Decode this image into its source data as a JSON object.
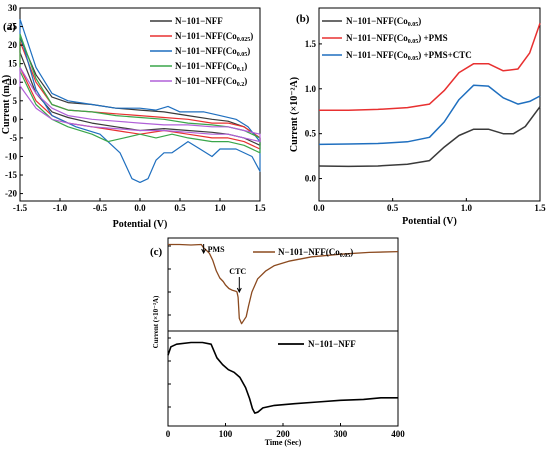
{
  "chart_data": [
    {
      "panel": "(a)",
      "type": "line",
      "xlabel": "Potential (V)",
      "ylabel": "Current (mA)",
      "xlim": [
        -1.5,
        1.5
      ],
      "ylim": [
        -22,
        30
      ],
      "xticks": [
        "-1.5",
        "-1.0",
        "-0.5",
        "0.0",
        "0.5",
        "1.0",
        "1.5"
      ],
      "yticks": [
        "30",
        "25",
        "20",
        "15",
        "10",
        "5",
        "0",
        "-5",
        "-10",
        "-15",
        "-20"
      ],
      "legend_position": "top-right",
      "series": [
        {
          "name": "N−101−NFF",
          "color": "#3a3a3a",
          "sub": "",
          "upper": [
            [
              -1.5,
              22
            ],
            [
              -1.3,
              12
            ],
            [
              -1.1,
              6
            ],
            [
              -0.9,
              4.5
            ],
            [
              -0.6,
              4
            ],
            [
              -0.3,
              3
            ],
            [
              0,
              2.5
            ],
            [
              0.3,
              2
            ],
            [
              0.6,
              1
            ],
            [
              0.9,
              0
            ],
            [
              1.1,
              -0.5
            ],
            [
              1.3,
              -2
            ],
            [
              1.5,
              -5
            ]
          ],
          "lower": [
            [
              1.5,
              -7
            ],
            [
              1.3,
              -5
            ],
            [
              1.1,
              -4
            ],
            [
              0.9,
              -3.5
            ],
            [
              0.6,
              -3
            ],
            [
              0.3,
              -2.5
            ],
            [
              0,
              -3
            ],
            [
              -0.3,
              -2
            ],
            [
              -0.6,
              -1
            ],
            [
              -0.9,
              0.5
            ],
            [
              -1.1,
              2
            ],
            [
              -1.3,
              7
            ],
            [
              -1.5,
              18
            ]
          ]
        },
        {
          "name": "N−101−NFF(Co",
          "color": "#e83030",
          "sub": "0.025",
          "upper": [
            [
              -1.5,
              21
            ],
            [
              -1.3,
              10
            ],
            [
              -1.1,
              4
            ],
            [
              -0.9,
              2.5
            ],
            [
              -0.6,
              2
            ],
            [
              -0.3,
              1.5
            ],
            [
              0,
              1
            ],
            [
              0.3,
              0.5
            ],
            [
              0.6,
              0
            ],
            [
              0.9,
              -1
            ],
            [
              1.1,
              -1
            ],
            [
              1.3,
              -2
            ],
            [
              1.5,
              -5
            ]
          ],
          "lower": [
            [
              1.5,
              -8
            ],
            [
              1.3,
              -6
            ],
            [
              1.1,
              -5
            ],
            [
              0.9,
              -5
            ],
            [
              0.6,
              -4
            ],
            [
              0.3,
              -3
            ],
            [
              0,
              -4
            ],
            [
              -0.3,
              -3
            ],
            [
              -0.6,
              -2
            ],
            [
              -0.9,
              -1
            ],
            [
              -1.1,
              1
            ],
            [
              -1.3,
              5
            ],
            [
              -1.5,
              14
            ]
          ]
        },
        {
          "name": "N−101−NFF(Co",
          "color": "#1f6fbf",
          "sub": "0.05",
          "upper": [
            [
              -1.5,
              27
            ],
            [
              -1.3,
              14
            ],
            [
              -1.1,
              7
            ],
            [
              -0.9,
              5
            ],
            [
              -0.6,
              4
            ],
            [
              -0.3,
              3
            ],
            [
              0,
              3
            ],
            [
              0.2,
              2.5
            ],
            [
              0.35,
              3.5
            ],
            [
              0.5,
              2
            ],
            [
              0.8,
              2
            ],
            [
              1.0,
              1
            ],
            [
              1.2,
              0
            ],
            [
              1.35,
              -2
            ],
            [
              1.5,
              -6
            ]
          ],
          "lower": [
            [
              1.5,
              -14
            ],
            [
              1.4,
              -10
            ],
            [
              1.2,
              -8
            ],
            [
              1.0,
              -8
            ],
            [
              0.9,
              -10
            ],
            [
              0.75,
              -8
            ],
            [
              0.6,
              -6
            ],
            [
              0.4,
              -9
            ],
            [
              0.3,
              -9
            ],
            [
              0.2,
              -11
            ],
            [
              0.1,
              -16
            ],
            [
              0.0,
              -17
            ],
            [
              -0.1,
              -16
            ],
            [
              -0.25,
              -9
            ],
            [
              -0.5,
              -4
            ],
            [
              -0.8,
              -2
            ],
            [
              -1.1,
              1
            ],
            [
              -1.3,
              8
            ],
            [
              -1.5,
              23
            ]
          ]
        },
        {
          "name": "N−101−NFF(Co",
          "color": "#3aa64a",
          "sub": "0.1",
          "upper": [
            [
              -1.5,
              23
            ],
            [
              -1.3,
              11
            ],
            [
              -1.1,
              4
            ],
            [
              -0.9,
              2.5
            ],
            [
              -0.6,
              2
            ],
            [
              -0.3,
              1
            ],
            [
              0,
              0.5
            ],
            [
              0.3,
              0
            ],
            [
              0.6,
              -1
            ],
            [
              0.9,
              -1.5
            ],
            [
              1.1,
              -2
            ],
            [
              1.3,
              -3
            ],
            [
              1.5,
              -5
            ]
          ],
          "lower": [
            [
              1.5,
              -9
            ],
            [
              1.3,
              -7
            ],
            [
              1.1,
              -6
            ],
            [
              0.9,
              -6
            ],
            [
              0.6,
              -5
            ],
            [
              0.4,
              -4
            ],
            [
              0.2,
              -5
            ],
            [
              0,
              -4
            ],
            [
              -0.2,
              -5
            ],
            [
              -0.4,
              -6
            ],
            [
              -0.6,
              -4
            ],
            [
              -0.9,
              -2
            ],
            [
              -1.1,
              0
            ],
            [
              -1.3,
              4
            ],
            [
              -1.5,
              13
            ]
          ]
        },
        {
          "name": "N−101−NFF(Co",
          "color": "#b060d8",
          "sub": "0.2",
          "upper": [
            [
              -1.5,
              14
            ],
            [
              -1.3,
              7
            ],
            [
              -1.1,
              3
            ],
            [
              -0.9,
              1
            ],
            [
              -0.6,
              0
            ],
            [
              -0.3,
              -0.5
            ],
            [
              0,
              -1
            ],
            [
              0.3,
              -1.5
            ],
            [
              0.6,
              -1.5
            ],
            [
              0.9,
              -2
            ],
            [
              1.1,
              -2
            ],
            [
              1.3,
              -3
            ],
            [
              1.5,
              -4
            ]
          ],
          "lower": [
            [
              1.5,
              -6
            ],
            [
              1.3,
              -5
            ],
            [
              1.1,
              -4
            ],
            [
              0.9,
              -4
            ],
            [
              0.6,
              -3.5
            ],
            [
              0.3,
              -3
            ],
            [
              0,
              -3
            ],
            [
              -0.3,
              -2.5
            ],
            [
              -0.6,
              -2
            ],
            [
              -0.9,
              -1
            ],
            [
              -1.1,
              0
            ],
            [
              -1.3,
              3
            ],
            [
              -1.5,
              9
            ]
          ]
        }
      ]
    },
    {
      "panel": "(b)",
      "type": "line",
      "xlabel": "Potential (V)",
      "ylabel": "Current (×10⁻²A)",
      "xlim": [
        0,
        1.5
      ],
      "ylim": [
        -0.25,
        1.9
      ],
      "xticks": [
        "0.0",
        "0.5",
        "1.0",
        "1.5"
      ],
      "yticks": [
        "0.0",
        "0.5",
        "1.0",
        "1.5"
      ],
      "legend_position": "top-left",
      "series": [
        {
          "name": "N−101−NFF(Co",
          "color": "#3a3a3a",
          "sub": "0.05",
          "suffix": "",
          "points": [
            [
              0,
              0.14
            ],
            [
              0.2,
              0.135
            ],
            [
              0.4,
              0.14
            ],
            [
              0.6,
              0.16
            ],
            [
              0.75,
              0.2
            ],
            [
              0.85,
              0.35
            ],
            [
              0.95,
              0.48
            ],
            [
              1.05,
              0.55
            ],
            [
              1.15,
              0.55
            ],
            [
              1.25,
              0.5
            ],
            [
              1.32,
              0.5
            ],
            [
              1.4,
              0.58
            ],
            [
              1.5,
              0.8
            ]
          ]
        },
        {
          "name": "N−101−NFF(Co",
          "color": "#e83030",
          "sub": "0.05",
          "suffix": ") +PMS",
          "points": [
            [
              0,
              0.76
            ],
            [
              0.2,
              0.76
            ],
            [
              0.4,
              0.77
            ],
            [
              0.6,
              0.79
            ],
            [
              0.75,
              0.83
            ],
            [
              0.85,
              0.98
            ],
            [
              0.95,
              1.18
            ],
            [
              1.05,
              1.28
            ],
            [
              1.15,
              1.28
            ],
            [
              1.25,
              1.2
            ],
            [
              1.35,
              1.22
            ],
            [
              1.43,
              1.4
            ],
            [
              1.5,
              1.73
            ]
          ]
        },
        {
          "name": "N−101−NFF(Co",
          "color": "#1f6fbf",
          "sub": "0.05",
          "suffix": ") +PMS+CTC",
          "points": [
            [
              0,
              0.38
            ],
            [
              0.2,
              0.385
            ],
            [
              0.4,
              0.39
            ],
            [
              0.6,
              0.41
            ],
            [
              0.75,
              0.46
            ],
            [
              0.85,
              0.63
            ],
            [
              0.95,
              0.88
            ],
            [
              1.05,
              1.04
            ],
            [
              1.15,
              1.03
            ],
            [
              1.25,
              0.9
            ],
            [
              1.35,
              0.83
            ],
            [
              1.43,
              0.86
            ],
            [
              1.5,
              0.92
            ]
          ]
        }
      ]
    },
    {
      "panel": "(c)",
      "type": "line",
      "xlabel": "Time (Sec)",
      "ylabel": "Current (×10⁻³A)",
      "xlim": [
        0,
        400
      ],
      "xticks": [
        "0",
        "100",
        "200",
        "300",
        "400"
      ],
      "annotations": [
        "PMS",
        "CTC"
      ],
      "series": [
        {
          "name": "N−101−NFF(Co",
          "sub": "0.05",
          "color": "#8b4a1f",
          "ylim": [
            0,
            1
          ],
          "points": [
            [
              0,
              0.96
            ],
            [
              20,
              0.96
            ],
            [
              40,
              0.955
            ],
            [
              58,
              0.96
            ],
            [
              62,
              0.92
            ],
            [
              66,
              0.9
            ],
            [
              72,
              0.86
            ],
            [
              78,
              0.78
            ],
            [
              84,
              0.66
            ],
            [
              90,
              0.58
            ],
            [
              96,
              0.54
            ],
            [
              100,
              0.5
            ],
            [
              106,
              0.46
            ],
            [
              112,
              0.44
            ],
            [
              118,
              0.43
            ],
            [
              120,
              0.42
            ],
            [
              122,
              0.36
            ],
            [
              124,
              0.12
            ],
            [
              128,
              0.06
            ],
            [
              132,
              0.1
            ],
            [
              136,
              0.14
            ],
            [
              140,
              0.26
            ],
            [
              146,
              0.42
            ],
            [
              156,
              0.57
            ],
            [
              170,
              0.66
            ],
            [
              185,
              0.72
            ],
            [
              210,
              0.77
            ],
            [
              250,
              0.82
            ],
            [
              300,
              0.85
            ],
            [
              350,
              0.87
            ],
            [
              400,
              0.88
            ]
          ]
        },
        {
          "name": "N−101−NFF",
          "sub": "",
          "color": "#000000",
          "ylim": [
            0,
            1
          ],
          "points": [
            [
              0,
              0.75
            ],
            [
              5,
              0.85
            ],
            [
              15,
              0.88
            ],
            [
              40,
              0.9
            ],
            [
              60,
              0.9
            ],
            [
              75,
              0.88
            ],
            [
              85,
              0.72
            ],
            [
              95,
              0.64
            ],
            [
              105,
              0.58
            ],
            [
              115,
              0.55
            ],
            [
              125,
              0.49
            ],
            [
              135,
              0.37
            ],
            [
              142,
              0.24
            ],
            [
              147,
              0.12
            ],
            [
              151,
              0.07
            ],
            [
              156,
              0.08
            ],
            [
              165,
              0.13
            ],
            [
              185,
              0.16
            ],
            [
              220,
              0.18
            ],
            [
              260,
              0.2
            ],
            [
              300,
              0.22
            ],
            [
              340,
              0.23
            ],
            [
              370,
              0.25
            ],
            [
              400,
              0.25
            ]
          ]
        }
      ]
    }
  ]
}
